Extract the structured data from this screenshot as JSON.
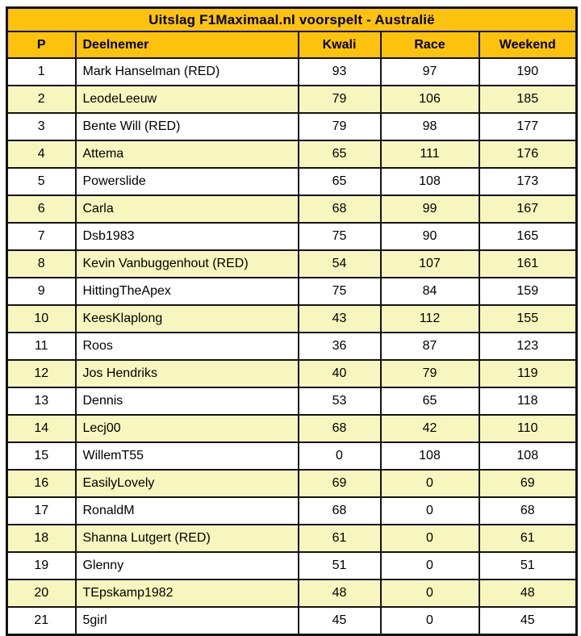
{
  "chart_data": {
    "type": "table",
    "title": "Uitslag F1Maximaal.nl voorspelt - Australië",
    "columns": [
      "P",
      "Deelnemer",
      "Kwali",
      "Race",
      "Weekend"
    ],
    "rows": [
      [
        1,
        "Mark Hanselman (RED)",
        93,
        97,
        190
      ],
      [
        2,
        "LeodeLeeuw",
        79,
        106,
        185
      ],
      [
        3,
        "Bente Will (RED)",
        79,
        98,
        177
      ],
      [
        4,
        "Attema",
        65,
        111,
        176
      ],
      [
        5,
        "Powerslide",
        65,
        108,
        173
      ],
      [
        6,
        "Carla",
        68,
        99,
        167
      ],
      [
        7,
        "Dsb1983",
        75,
        90,
        165
      ],
      [
        8,
        "Kevin Vanbuggenhout (RED)",
        54,
        107,
        161
      ],
      [
        9,
        "HittingTheApex",
        75,
        84,
        159
      ],
      [
        10,
        "KeesKlaplong",
        43,
        112,
        155
      ],
      [
        11,
        "Roos",
        36,
        87,
        123
      ],
      [
        12,
        "Jos Hendriks",
        40,
        79,
        119
      ],
      [
        13,
        "Dennis",
        53,
        65,
        118
      ],
      [
        14,
        "Lecj00",
        68,
        42,
        110
      ],
      [
        15,
        "WillemT55",
        0,
        108,
        108
      ],
      [
        16,
        "EasilyLovely",
        69,
        0,
        69
      ],
      [
        17,
        "RonaldM",
        68,
        0,
        68
      ],
      [
        18,
        "Shanna Lutgert (RED)",
        61,
        0,
        61
      ],
      [
        19,
        "Glenny",
        51,
        0,
        51
      ],
      [
        20,
        "TEpskamp1982",
        48,
        0,
        48
      ],
      [
        21,
        "5girl",
        45,
        0,
        45
      ]
    ],
    "layout": {
      "zebra_striping": true,
      "column_alignments": [
        "center",
        "left",
        "center",
        "center",
        "center"
      ]
    }
  },
  "colors": {
    "header_bg": "#FDC20E",
    "row_bg": "#FFFFFF",
    "row_alt_bg": "#F6F6BE",
    "border": "#141414",
    "text": "#000000"
  }
}
